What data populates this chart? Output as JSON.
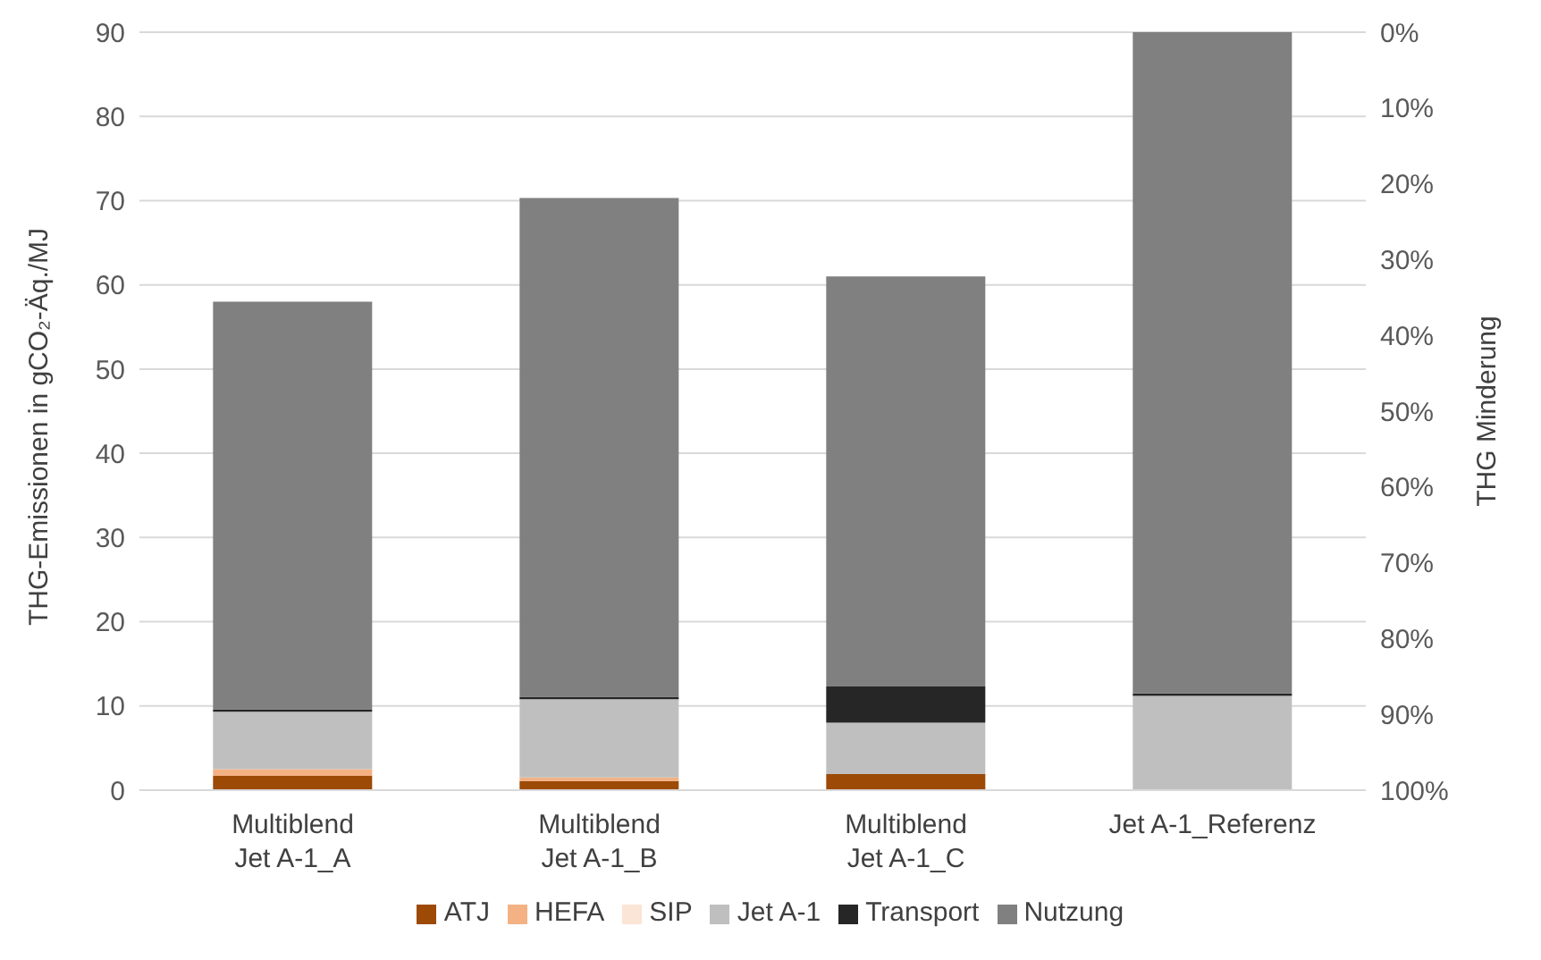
{
  "chart_data": {
    "type": "bar",
    "stacked": true,
    "ylabel": "THG-Emissionen in gCO₂-Äq./MJ",
    "y2label": "THG Minderung",
    "categories": [
      "Multiblend Jet A-1_A",
      "Multiblend Jet A-1_B",
      "Multiblend Jet A-1_C",
      "Jet A-1_Referenz"
    ],
    "series": [
      {
        "name": "ATJ",
        "color": "#9c4a06",
        "values": [
          1.7,
          1.1,
          1.9,
          0
        ]
      },
      {
        "name": "HEFA",
        "color": "#f4b183",
        "values": [
          0.8,
          0.4,
          0,
          0
        ]
      },
      {
        "name": "SIP",
        "color": "#fbe5d6",
        "values": [
          null,
          null,
          0,
          0
        ]
      },
      {
        "name": "Jet A-1",
        "color": "#bfbfbf",
        "values": [
          6.8,
          9.3,
          6.1,
          11.2
        ]
      },
      {
        "name": "Transport",
        "color": "#262626",
        "values": [
          0.3,
          0.3,
          4.3,
          0.3
        ]
      },
      {
        "name": "Nutzung",
        "color": "#808080",
        "values": [
          48.4,
          59.2,
          48.7,
          78.5
        ]
      }
    ],
    "ylim": [
      0,
      90
    ],
    "yticks": [
      0,
      10,
      20,
      30,
      40,
      50,
      60,
      70,
      80,
      90
    ],
    "y2lim": [
      100,
      0
    ],
    "y2ticks": [
      {
        "value": 0,
        "label": "0%"
      },
      {
        "value": 10,
        "label": "10%"
      },
      {
        "value": 20,
        "label": "20%"
      },
      {
        "value": 30,
        "label": "30%"
      },
      {
        "value": 40,
        "label": "40%"
      },
      {
        "value": 50,
        "label": "50%"
      },
      {
        "value": 60,
        "label": "60%"
      },
      {
        "value": 70,
        "label": "70%"
      },
      {
        "value": 80,
        "label": "80%"
      },
      {
        "value": 90,
        "label": "90%"
      },
      {
        "value": 100,
        "label": "100%"
      }
    ],
    "grid": "y",
    "legend": "bottom"
  }
}
